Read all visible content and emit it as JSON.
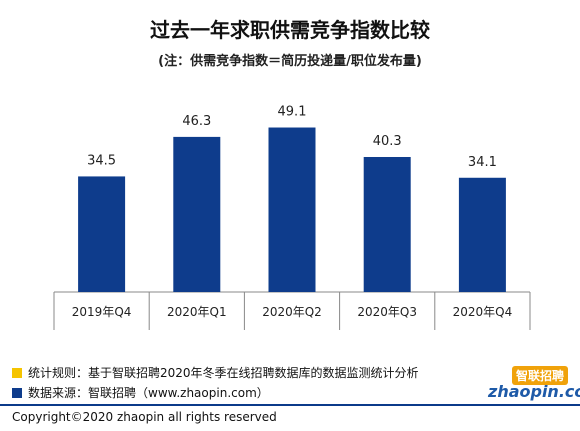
{
  "chart_data": {
    "type": "bar",
    "title": "过去一年求职供需竞争指数比较",
    "subtitle": "(注：供需竞争指数＝简历投递量/职位发布量)",
    "categories": [
      "2019年Q4",
      "2020年Q1",
      "2020年Q2",
      "2020年Q3",
      "2020年Q4"
    ],
    "values": [
      34.5,
      46.3,
      49.1,
      40.3,
      34.1
    ],
    "ylim": [
      0,
      55
    ],
    "grid": false,
    "bar_color": "#0e3c8c"
  },
  "notes": {
    "rule": "统计规则：基于智联招聘2020年冬季在线招聘数据库的数据监测统计分析",
    "source": "数据来源：智联招聘（www.zhaopin.com）",
    "rule_color": "#f5c400",
    "source_color": "#0e3c8c"
  },
  "logo": {
    "mark": "智联招聘",
    "word": "zhaopin.com"
  },
  "copyright": "Copyright©2020 zhaopin all rights reserved"
}
